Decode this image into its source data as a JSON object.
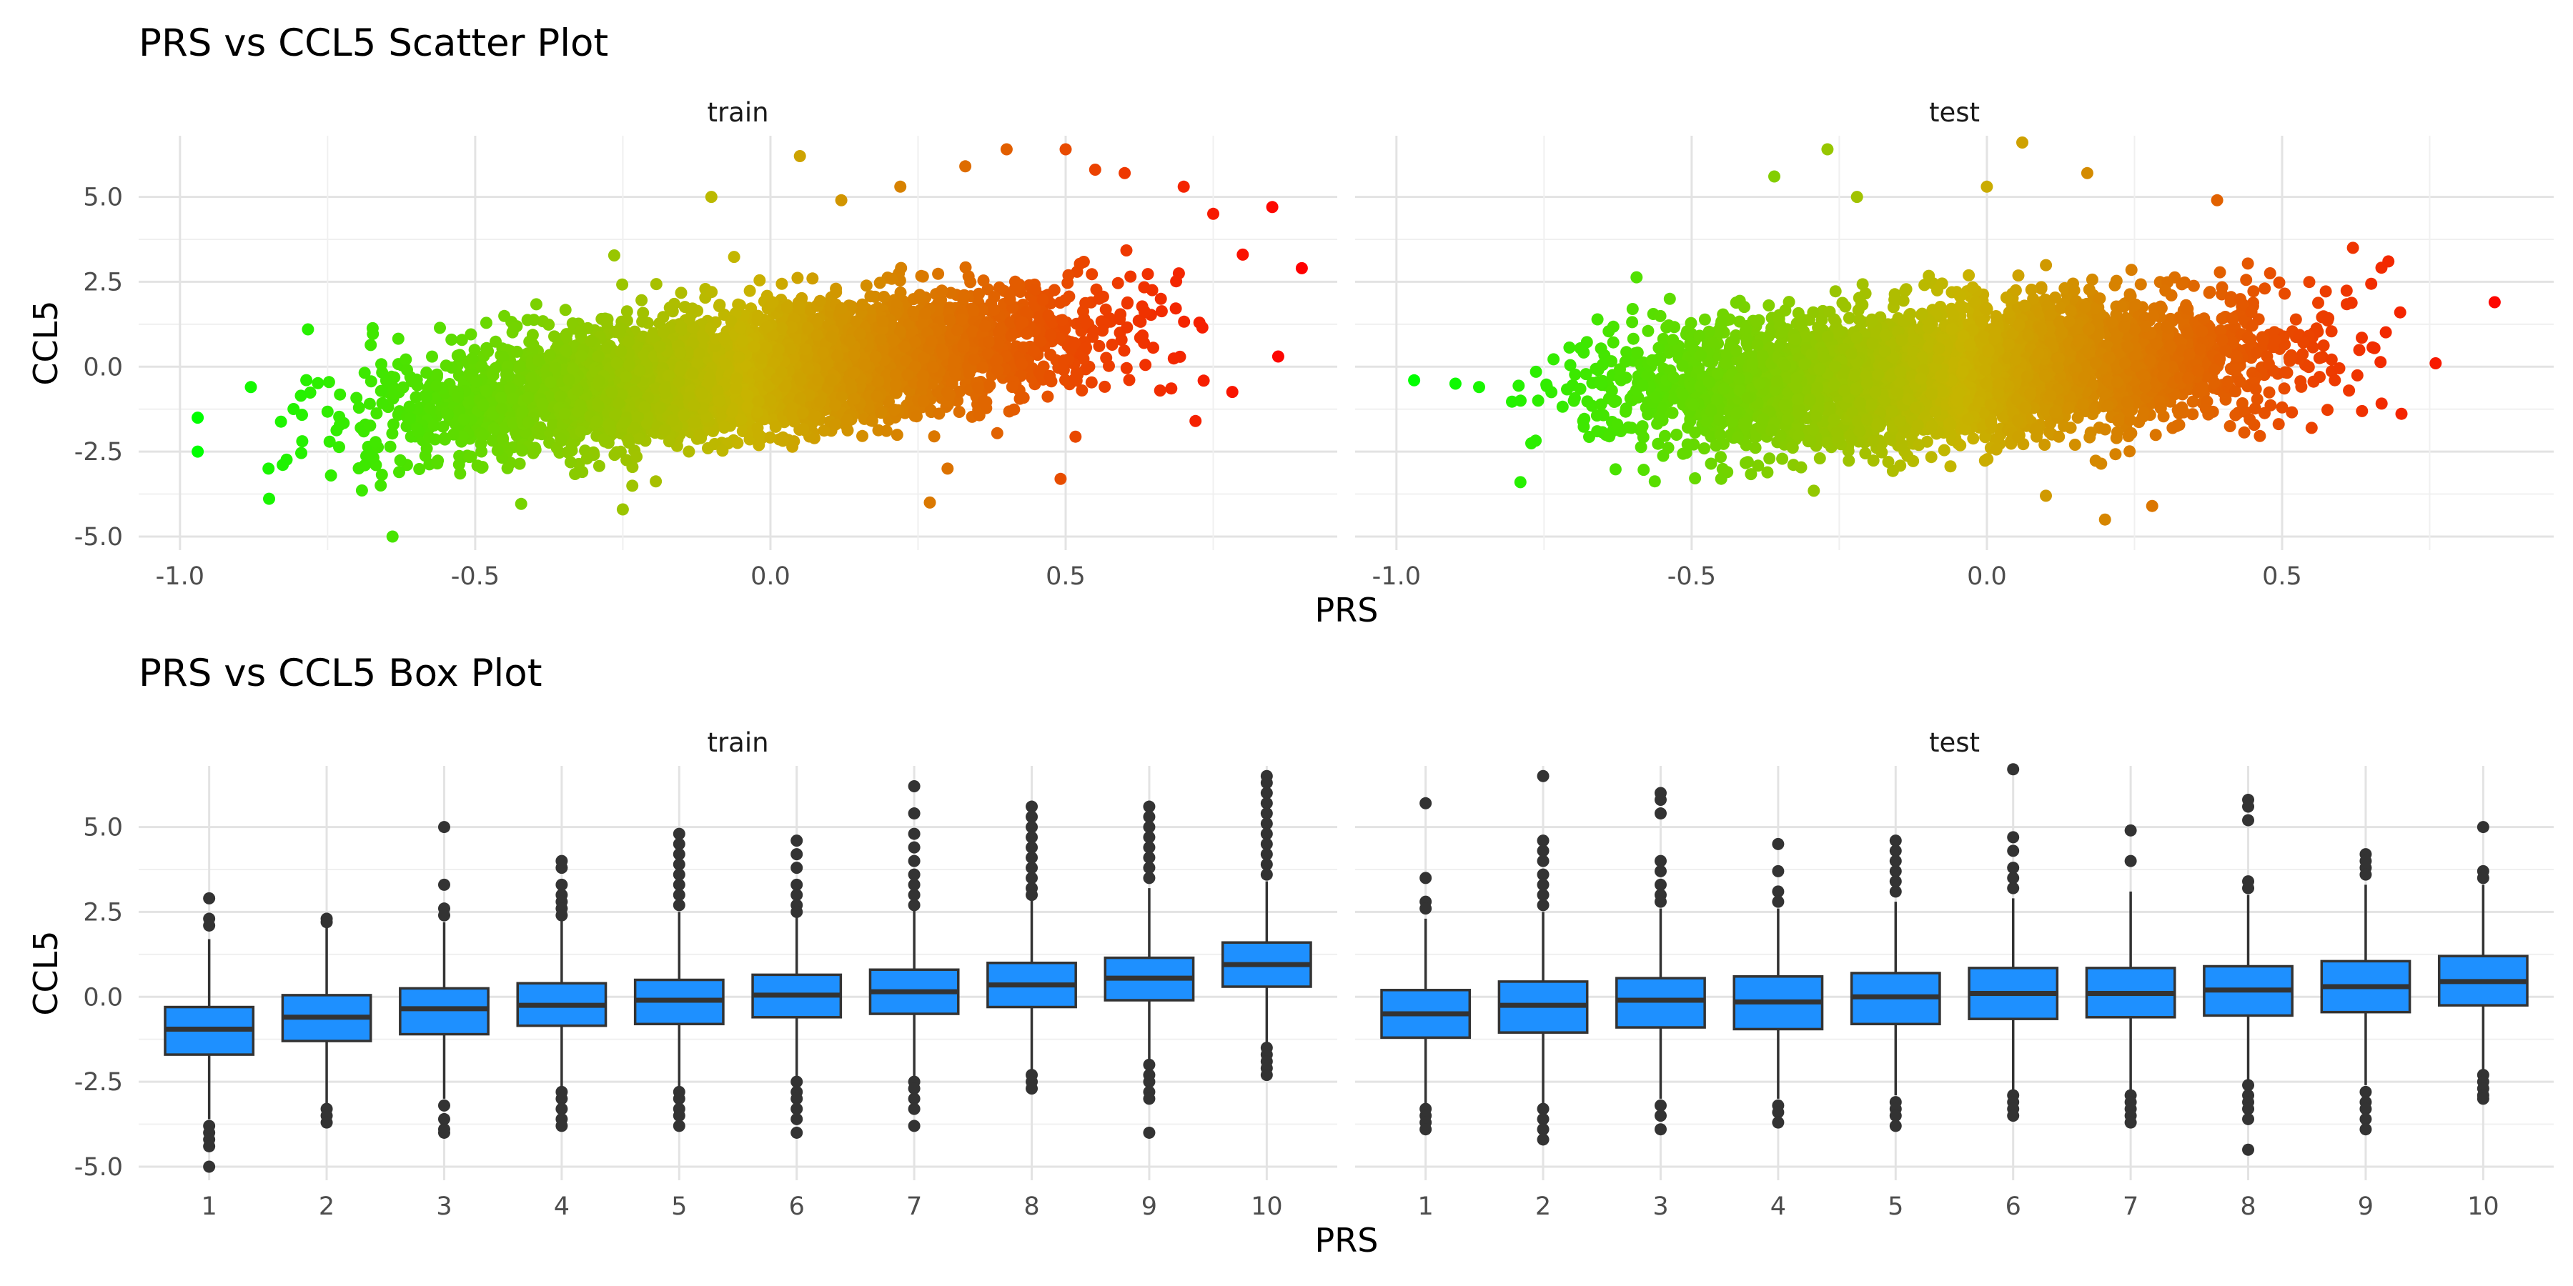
{
  "chart_data": [
    {
      "type": "scatter",
      "title": "PRS vs CCL5 Scatter Plot",
      "xlabel": "PRS",
      "ylabel": "CCL5",
      "xlim": [
        -1.07,
        0.96
      ],
      "ylim": [
        -5.4,
        6.8
      ],
      "x_ticks": [
        "-1.0",
        "-0.5",
        "0.0",
        "0.5"
      ],
      "y_ticks": [
        "5.0",
        "2.5",
        "0.0",
        "-2.5",
        "-5.0"
      ],
      "color_scale": {
        "low": "#00ff00",
        "mid": "#c8b400",
        "high": "#ff0000"
      },
      "grid": true,
      "panels": [
        {
          "label": "train",
          "trend": {
            "intercept": -0.05,
            "slope": 2.0
          },
          "x_range": [
            -0.97,
            0.89
          ],
          "outliers": [
            [
              -0.97,
              -1.5
            ],
            [
              -0.97,
              -2.5
            ],
            [
              -0.88,
              -0.6
            ],
            [
              -0.85,
              -3.0
            ],
            [
              -0.64,
              -5.0
            ],
            [
              0.05,
              6.2
            ],
            [
              0.22,
              5.3
            ],
            [
              0.27,
              -4.0
            ],
            [
              0.4,
              6.4
            ],
            [
              0.5,
              6.4
            ],
            [
              0.6,
              5.7
            ],
            [
              0.7,
              5.3
            ],
            [
              0.85,
              4.7
            ],
            [
              0.9,
              2.9
            ],
            [
              0.86,
              0.3
            ],
            [
              -0.1,
              5.0
            ],
            [
              0.12,
              4.9
            ],
            [
              0.33,
              5.9
            ],
            [
              0.55,
              5.8
            ],
            [
              0.75,
              4.5
            ],
            [
              0.8,
              3.3
            ],
            [
              -0.25,
              -4.2
            ],
            [
              0.3,
              -3.0
            ],
            [
              0.66,
              -0.7
            ],
            [
              0.72,
              -1.6
            ]
          ]
        },
        {
          "label": "test",
          "trend": {
            "intercept": -0.1,
            "slope": 1.1
          },
          "x_range": [
            -0.97,
            0.86
          ],
          "outliers": [
            [
              -0.97,
              -0.4
            ],
            [
              -0.9,
              -0.5
            ],
            [
              -0.86,
              -0.6
            ],
            [
              -0.79,
              -3.4
            ],
            [
              -0.76,
              -1.0
            ],
            [
              0.86,
              1.9
            ],
            [
              0.76,
              0.1
            ],
            [
              0.7,
              1.6
            ],
            [
              0.68,
              3.1
            ],
            [
              0.06,
              6.6
            ],
            [
              -0.27,
              6.4
            ],
            [
              -0.36,
              5.6
            ],
            [
              0.17,
              5.7
            ],
            [
              0.39,
              4.9
            ],
            [
              0.2,
              -4.5
            ],
            [
              -0.22,
              5.0
            ],
            [
              0.0,
              5.3
            ],
            [
              0.28,
              -4.1
            ],
            [
              0.55,
              -1.8
            ],
            [
              0.5,
              -1.2
            ],
            [
              -0.66,
              -1.9
            ],
            [
              -0.6,
              1.7
            ],
            [
              0.62,
              3.5
            ],
            [
              -0.45,
              -3.3
            ],
            [
              0.1,
              -3.8
            ]
          ]
        }
      ]
    },
    {
      "type": "box",
      "title": "PRS vs CCL5 Box Plot",
      "xlabel": "PRS",
      "ylabel": "CCL5",
      "categories": [
        "1",
        "2",
        "3",
        "4",
        "5",
        "6",
        "7",
        "8",
        "9",
        "10"
      ],
      "ylim": [
        -5.4,
        6.8
      ],
      "y_ticks": [
        "5.0",
        "2.5",
        "0.0",
        "-2.5",
        "-5.0"
      ],
      "box_color": "#1e90ff",
      "line_color": "#333333",
      "grid": true,
      "panels": [
        {
          "label": "train",
          "boxes": [
            {
              "q1": -1.7,
              "median": -0.95,
              "q3": -0.3,
              "lower": -3.6,
              "upper": 1.7,
              "outliers": [
                2.9,
                2.3,
                2.1,
                -3.8,
                -4.0,
                -4.2,
                -4.4,
                -5.0
              ]
            },
            {
              "q1": -1.3,
              "median": -0.6,
              "q3": 0.05,
              "lower": -3.2,
              "upper": 2.1,
              "outliers": [
                2.3,
                2.2,
                -3.3,
                -3.5,
                -3.7
              ]
            },
            {
              "q1": -1.1,
              "median": -0.35,
              "q3": 0.25,
              "lower": -3.0,
              "upper": 2.2,
              "outliers": [
                5.0,
                3.3,
                2.6,
                2.4,
                -3.2,
                -3.6,
                -3.9,
                -4.0
              ]
            },
            {
              "q1": -0.85,
              "median": -0.25,
              "q3": 0.4,
              "lower": -2.7,
              "upper": 2.3,
              "outliers": [
                4.0,
                3.8,
                3.3,
                3.0,
                2.8,
                2.6,
                2.4,
                -2.8,
                -3.0,
                -3.3,
                -3.6,
                -3.8
              ]
            },
            {
              "q1": -0.8,
              "median": -0.1,
              "q3": 0.5,
              "lower": -2.7,
              "upper": 2.5,
              "outliers": [
                4.8,
                4.5,
                4.2,
                3.9,
                3.6,
                3.3,
                3.0,
                2.7,
                -2.8,
                -3.0,
                -3.3,
                -3.5,
                -3.8
              ]
            },
            {
              "q1": -0.6,
              "median": 0.05,
              "q3": 0.65,
              "lower": -2.4,
              "upper": 2.4,
              "outliers": [
                4.6,
                4.2,
                3.8,
                3.3,
                3.0,
                2.7,
                2.5,
                -2.5,
                -2.8,
                -3.0,
                -3.3,
                -3.6,
                -4.0
              ]
            },
            {
              "q1": -0.5,
              "median": 0.15,
              "q3": 0.8,
              "lower": -2.4,
              "upper": 2.6,
              "outliers": [
                6.2,
                5.4,
                4.8,
                4.4,
                4.0,
                3.6,
                3.3,
                3.0,
                2.7,
                -2.5,
                -2.7,
                -3.0,
                -3.3,
                -3.8
              ]
            },
            {
              "q1": -0.3,
              "median": 0.35,
              "q3": 1.0,
              "lower": -2.2,
              "upper": 2.9,
              "outliers": [
                5.6,
                5.3,
                5.0,
                4.7,
                4.4,
                4.1,
                3.8,
                3.5,
                3.2,
                3.0,
                -2.3,
                -2.5,
                -2.7
              ]
            },
            {
              "q1": -0.1,
              "median": 0.55,
              "q3": 1.15,
              "lower": -1.9,
              "upper": 3.2,
              "outliers": [
                5.6,
                5.3,
                5.0,
                4.7,
                4.4,
                4.1,
                3.8,
                3.5,
                -2.0,
                -2.3,
                -2.5,
                -2.8,
                -3.0,
                -4.0
              ]
            },
            {
              "q1": 0.3,
              "median": 0.95,
              "q3": 1.6,
              "lower": -1.4,
              "upper": 3.4,
              "outliers": [
                6.5,
                6.3,
                6.0,
                5.7,
                5.4,
                5.1,
                4.8,
                4.5,
                4.2,
                3.9,
                3.6,
                -1.5,
                -1.7,
                -1.9,
                -2.1,
                -2.3
              ]
            }
          ]
        },
        {
          "label": "test",
          "boxes": [
            {
              "q1": -1.2,
              "median": -0.5,
              "q3": 0.2,
              "lower": -3.2,
              "upper": 2.3,
              "outliers": [
                5.7,
                3.5,
                2.8,
                2.6,
                -3.3,
                -3.5,
                -3.7,
                -3.9
              ]
            },
            {
              "q1": -1.05,
              "median": -0.25,
              "q3": 0.45,
              "lower": -3.2,
              "upper": 2.5,
              "outliers": [
                6.5,
                4.6,
                4.3,
                4.0,
                3.6,
                3.3,
                3.0,
                2.7,
                -3.3,
                -3.6,
                -3.9,
                -4.2
              ]
            },
            {
              "q1": -0.9,
              "median": -0.1,
              "q3": 0.55,
              "lower": -3.0,
              "upper": 2.6,
              "outliers": [
                6.0,
                5.8,
                5.4,
                4.0,
                3.7,
                3.3,
                3.0,
                2.8,
                -3.2,
                -3.5,
                -3.9
              ]
            },
            {
              "q1": -0.95,
              "median": -0.15,
              "q3": 0.6,
              "lower": -3.0,
              "upper": 2.6,
              "outliers": [
                4.5,
                3.7,
                3.1,
                2.8,
                -3.2,
                -3.4,
                -3.7
              ]
            },
            {
              "q1": -0.8,
              "median": 0.0,
              "q3": 0.7,
              "lower": -2.9,
              "upper": 2.8,
              "outliers": [
                4.6,
                4.3,
                4.0,
                3.7,
                3.4,
                3.1,
                -3.1,
                -3.3,
                -3.5,
                -3.8
              ]
            },
            {
              "q1": -0.65,
              "median": 0.1,
              "q3": 0.85,
              "lower": -2.8,
              "upper": 2.9,
              "outliers": [
                6.7,
                4.7,
                4.3,
                3.8,
                3.5,
                3.2,
                -2.9,
                -3.1,
                -3.3,
                -3.5
              ]
            },
            {
              "q1": -0.6,
              "median": 0.1,
              "q3": 0.85,
              "lower": -2.8,
              "upper": 3.1,
              "outliers": [
                4.9,
                4.0,
                -2.9,
                -3.1,
                -3.3,
                -3.5,
                -3.7
              ]
            },
            {
              "q1": -0.55,
              "median": 0.2,
              "q3": 0.9,
              "lower": -2.5,
              "upper": 3.0,
              "outliers": [
                5.8,
                5.6,
                5.2,
                3.4,
                3.2,
                -2.6,
                -2.9,
                -3.1,
                -3.3,
                -3.6,
                -4.5
              ]
            },
            {
              "q1": -0.45,
              "median": 0.3,
              "q3": 1.05,
              "lower": -2.6,
              "upper": 3.3,
              "outliers": [
                4.2,
                4.0,
                3.8,
                3.6,
                -2.8,
                -3.1,
                -3.3,
                -3.6,
                -3.9
              ]
            },
            {
              "q1": -0.25,
              "median": 0.45,
              "q3": 1.2,
              "lower": -2.2,
              "upper": 3.3,
              "outliers": [
                5.0,
                3.7,
                3.5,
                -2.3,
                -2.5,
                -2.7,
                -2.9,
                -3.0
              ]
            }
          ]
        }
      ]
    }
  ]
}
